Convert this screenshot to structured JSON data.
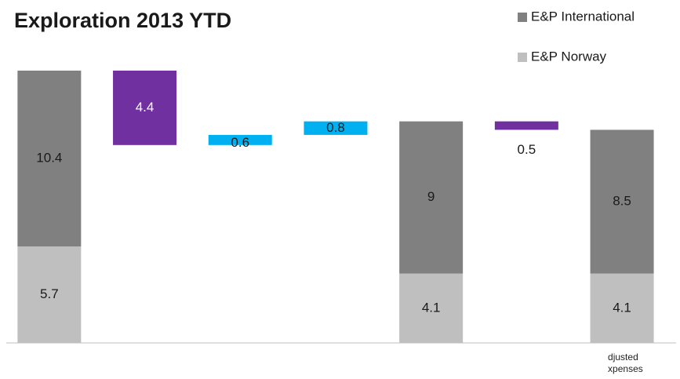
{
  "chart_data": {
    "type": "waterfall",
    "title": "Exploration 2013 YTD",
    "categories": [
      null,
      null,
      null,
      null,
      null,
      null,
      "djusted xpenses"
    ],
    "series": [
      {
        "name": "E&P Norway",
        "color": "#bfbfbf",
        "values": [
          5.7,
          null,
          null,
          null,
          4.1,
          null,
          4.1
        ]
      },
      {
        "name": "E&P International",
        "color": "#808080",
        "values": [
          10.4,
          null,
          null,
          null,
          9.0,
          null,
          8.5
        ]
      }
    ],
    "changes": {
      "values": [
        null,
        4.4,
        0.6,
        0.8,
        null,
        0.5,
        null
      ],
      "value_labels": [
        null,
        "4.4",
        "0.6",
        "0.8",
        null,
        "0.5",
        null
      ],
      "kinds": [
        null,
        "down",
        "up",
        "up",
        null,
        "down",
        null
      ],
      "colors": {
        "down": "#7030a0",
        "up": "#00b0f0"
      }
    },
    "ylim": [
      0,
      16.1
    ]
  }
}
